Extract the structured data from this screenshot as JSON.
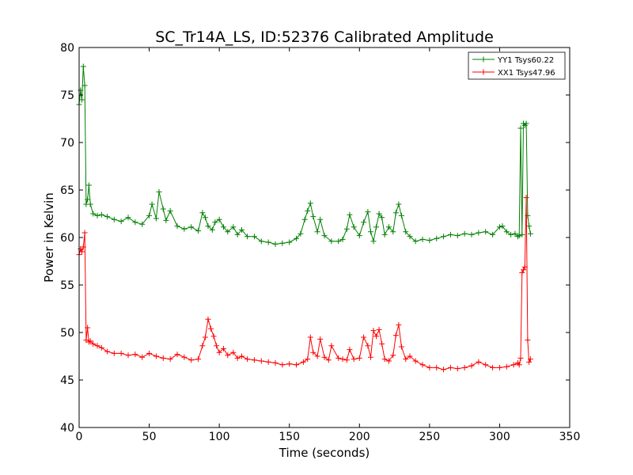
{
  "chart_data": {
    "type": "line",
    "title": "SC_Tr14A_LS, ID:52376 Calibrated Amplitude",
    "xlabel": "Time (seconds)",
    "ylabel": "Power in Kelvin",
    "xlim": [
      0,
      350
    ],
    "ylim": [
      40,
      80
    ],
    "xticks": [
      0,
      50,
      100,
      150,
      200,
      250,
      300,
      350
    ],
    "yticks": [
      40,
      45,
      50,
      55,
      60,
      65,
      70,
      75,
      80
    ],
    "grid": false,
    "legend_position": "top-right",
    "marker": "plus",
    "series": [
      {
        "name": "YY1 Tsys60.22",
        "color": "#008000",
        "x": [
          0,
          1,
          2,
          3,
          4,
          5,
          6,
          7,
          8,
          10,
          13,
          16,
          20,
          25,
          30,
          35,
          40,
          45,
          50,
          52,
          55,
          57,
          60,
          62,
          65,
          70,
          75,
          80,
          85,
          88,
          90,
          92,
          95,
          97,
          100,
          103,
          106,
          110,
          113,
          116,
          120,
          125,
          130,
          135,
          140,
          145,
          150,
          155,
          158,
          161,
          163,
          165,
          167,
          170,
          172,
          175,
          180,
          185,
          188,
          191,
          193,
          196,
          200,
          203,
          206,
          208,
          210,
          212,
          214,
          216,
          218,
          221,
          224,
          226,
          228,
          230,
          233,
          236,
          240,
          245,
          250,
          255,
          260,
          265,
          270,
          275,
          280,
          285,
          290,
          295,
          300,
          302,
          305,
          308,
          311,
          313,
          314,
          315,
          316,
          317,
          318,
          319,
          320,
          321,
          322
        ],
        "values": [
          74,
          75.5,
          74.5,
          78,
          76,
          63.5,
          64,
          65.5,
          63.5,
          62.5,
          62.3,
          62.4,
          62.2,
          61.9,
          61.7,
          62.1,
          61.6,
          61.4,
          62.3,
          63.5,
          62,
          64.8,
          63,
          61.8,
          62.8,
          61.2,
          60.9,
          61.1,
          60.7,
          62.6,
          62.1,
          61.2,
          60.8,
          61.6,
          61.9,
          61.1,
          60.6,
          61.1,
          60.3,
          60.8,
          60.1,
          60.1,
          59.6,
          59.5,
          59.3,
          59.4,
          59.5,
          59.9,
          60.4,
          61.9,
          62.8,
          63.6,
          62.2,
          60.6,
          61.9,
          60.2,
          59.6,
          59.6,
          59.8,
          60.9,
          62.4,
          61.1,
          60.2,
          61.6,
          62.7,
          60.6,
          59.6,
          61.1,
          62.5,
          62.1,
          60.3,
          61.1,
          60.6,
          62.6,
          63.5,
          62.3,
          60.6,
          60.1,
          59.6,
          59.8,
          59.7,
          59.9,
          60.1,
          60.3,
          60.2,
          60.4,
          60.3,
          60.5,
          60.6,
          60.3,
          61.1,
          61.2,
          60.6,
          60.3,
          60.4,
          60.1,
          60.2,
          71.5,
          60.3,
          72,
          71.8,
          72,
          62.3,
          61.2,
          60.4
        ]
      },
      {
        "name": "XX1 Tsys47.96",
        "color": "#ff0000",
        "x": [
          0,
          1,
          2,
          3,
          4,
          5,
          6,
          7,
          8,
          10,
          13,
          16,
          20,
          25,
          30,
          35,
          40,
          45,
          50,
          55,
          60,
          65,
          70,
          75,
          80,
          85,
          88,
          90,
          92,
          94,
          96,
          98,
          100,
          103,
          106,
          110,
          113,
          116,
          120,
          125,
          130,
          135,
          140,
          145,
          150,
          155,
          160,
          163,
          165,
          167,
          170,
          172,
          175,
          178,
          180,
          185,
          188,
          191,
          193,
          196,
          200,
          203,
          206,
          208,
          210,
          212,
          214,
          216,
          218,
          221,
          224,
          226,
          228,
          230,
          233,
          236,
          240,
          245,
          250,
          255,
          260,
          265,
          270,
          275,
          280,
          285,
          290,
          295,
          300,
          305,
          310,
          313,
          314,
          315,
          316,
          317,
          318,
          319,
          320,
          321,
          322
        ],
        "values": [
          58.2,
          58.8,
          58.5,
          59,
          60.5,
          49.2,
          50.5,
          49,
          49.1,
          48.8,
          48.6,
          48.4,
          48,
          47.8,
          47.8,
          47.6,
          47.7,
          47.4,
          47.8,
          47.5,
          47.3,
          47.2,
          47.7,
          47.4,
          47.1,
          47.2,
          48.6,
          49.5,
          51.4,
          50.4,
          49.6,
          48.6,
          47.9,
          48.3,
          47.6,
          47.9,
          47.3,
          47.5,
          47.2,
          47.1,
          47,
          46.9,
          46.8,
          46.6,
          46.7,
          46.6,
          46.9,
          47.2,
          49.5,
          47.9,
          47.5,
          49.3,
          47.4,
          47.1,
          48.6,
          47.3,
          47.2,
          47.1,
          48.2,
          47.2,
          47.3,
          49.5,
          48.6,
          47.4,
          50.2,
          49.6,
          50.3,
          48.8,
          47.2,
          47,
          47.6,
          49.7,
          50.8,
          48.5,
          47.2,
          47.5,
          47,
          46.6,
          46.3,
          46.3,
          46.1,
          46.3,
          46.2,
          46.3,
          46.5,
          46.9,
          46.6,
          46.3,
          46.3,
          46.4,
          46.6,
          46.8,
          46.6,
          47.3,
          56.3,
          56.6,
          56.9,
          64.2,
          49.2,
          46.9,
          47.2
        ]
      }
    ]
  }
}
